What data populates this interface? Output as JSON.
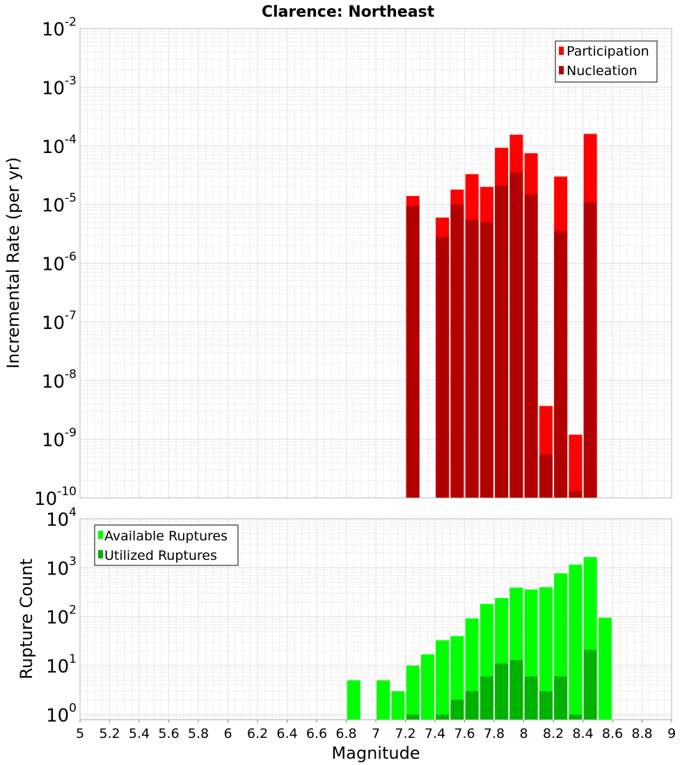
{
  "chart_data": [
    {
      "type": "bar",
      "title": "Clarence: Northeast",
      "xlabel": "",
      "ylabel": "Incremental Rate (per yr)",
      "yscale": "log",
      "ylim": [
        1e-10,
        0.01
      ],
      "xlim": [
        5,
        9
      ],
      "grid": true,
      "legend_position": "top-right",
      "y_ticks": [
        {
          "base": "10",
          "exp": "-10"
        },
        {
          "base": "10",
          "exp": "-9"
        },
        {
          "base": "10",
          "exp": "-8"
        },
        {
          "base": "10",
          "exp": "-7"
        },
        {
          "base": "10",
          "exp": "-6"
        },
        {
          "base": "10",
          "exp": "-5"
        },
        {
          "base": "10",
          "exp": "-4"
        },
        {
          "base": "10",
          "exp": "-3"
        },
        {
          "base": "10",
          "exp": "-2"
        }
      ],
      "series": [
        {
          "name": "Participation",
          "color": "#ff0000",
          "x": [
            7.25,
            7.45,
            7.55,
            7.65,
            7.75,
            7.85,
            7.95,
            8.05,
            8.15,
            8.25,
            8.35,
            8.45
          ],
          "values": [
            1.4e-05,
            6e-06,
            1.8e-05,
            3.3e-05,
            2e-05,
            9.3e-05,
            0.000155,
            7.5e-05,
            3.7e-09,
            3e-05,
            1.2e-09,
            0.00016
          ]
        },
        {
          "name": "Nucleation",
          "color": "#b20000",
          "x": [
            7.25,
            7.45,
            7.55,
            7.65,
            7.75,
            7.85,
            7.95,
            8.05,
            8.15,
            8.25,
            8.35,
            8.45
          ],
          "values": [
            9.5e-06,
            2.8e-06,
            1e-05,
            5.5e-06,
            5e-06,
            2.1e-05,
            3.5e-05,
            1.5e-05,
            5.5e-10,
            3.5e-06,
            1.3e-10,
            1.1e-05
          ]
        }
      ]
    },
    {
      "type": "bar",
      "title": "",
      "xlabel": "Magnitude",
      "ylabel": "Rupture Count",
      "yscale": "log",
      "ylim": [
        0.78,
        10000
      ],
      "xlim": [
        5,
        9
      ],
      "grid": true,
      "legend_position": "top-left",
      "x_ticks": [
        "5",
        "5.2",
        "5.4",
        "5.6",
        "5.8",
        "6",
        "6.2",
        "6.4",
        "6.6",
        "6.8",
        "7",
        "7.2",
        "7.4",
        "7.6",
        "7.8",
        "8",
        "8.2",
        "8.4",
        "8.6",
        "8.8",
        "9"
      ],
      "y_ticks": [
        {
          "base": "10",
          "exp": "0"
        },
        {
          "base": "10",
          "exp": "1"
        },
        {
          "base": "10",
          "exp": "2"
        },
        {
          "base": "10",
          "exp": "3"
        },
        {
          "base": "10",
          "exp": "4"
        }
      ],
      "series": [
        {
          "name": "Available Ruptures",
          "color": "#00ff00",
          "x": [
            6.85,
            7.05,
            7.15,
            7.25,
            7.35,
            7.45,
            7.55,
            7.65,
            7.75,
            7.85,
            7.95,
            8.05,
            8.15,
            8.25,
            8.35,
            8.45,
            8.55
          ],
          "values": [
            5,
            5,
            3,
            10,
            17,
            33,
            40,
            92,
            182,
            240,
            392,
            360,
            400,
            770,
            1160,
            1650,
            95
          ]
        },
        {
          "name": "Utilized Ruptures",
          "color": "#00b200",
          "x": [
            7.25,
            7.45,
            7.55,
            7.65,
            7.75,
            7.85,
            7.95,
            8.05,
            8.15,
            8.25,
            8.35,
            8.45
          ],
          "values": [
            1,
            1,
            2,
            3,
            6,
            11,
            13,
            6,
            3,
            6,
            1,
            21
          ]
        }
      ]
    }
  ]
}
